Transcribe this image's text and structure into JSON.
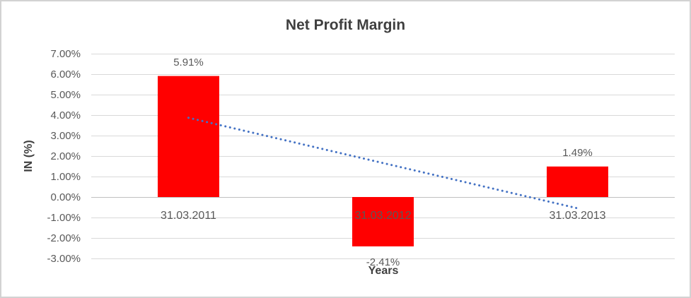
{
  "window": {
    "background": "#ffffff",
    "border_color": "#d2d2d2"
  },
  "chart_data": {
    "type": "bar",
    "title": "Net Profit Margin",
    "xlabel": "Years",
    "ylabel": "IN (%)",
    "categories": [
      "31.03.2011",
      "31.03.2012",
      "31.03.2013"
    ],
    "values": [
      5.91,
      -2.41,
      1.49
    ],
    "data_labels": [
      "5.91%",
      "-2.41%",
      "1.49%"
    ],
    "y_tick_labels": [
      "7.00%",
      "6.00%",
      "5.00%",
      "4.00%",
      "3.00%",
      "2.00%",
      "1.00%",
      "0.00%",
      "-1.00%",
      "-2.00%",
      "-3.00%"
    ],
    "y_tick_values": [
      7,
      6,
      5,
      4,
      3,
      2,
      1,
      0,
      -1,
      -2,
      -3
    ],
    "ylim": [
      -3,
      7
    ],
    "grid": true,
    "legend": "none",
    "bar_color": "#ff0000",
    "gridline_color": "#d9d9d9",
    "zero_line_color": "#bfbfbf",
    "tick_text_color": "#595959",
    "title_color": "#3f3f3f",
    "trendline": {
      "type": "linear",
      "style": "dotted",
      "color": "#4472c4",
      "start_value": 3.87,
      "end_value": -0.55
    }
  }
}
